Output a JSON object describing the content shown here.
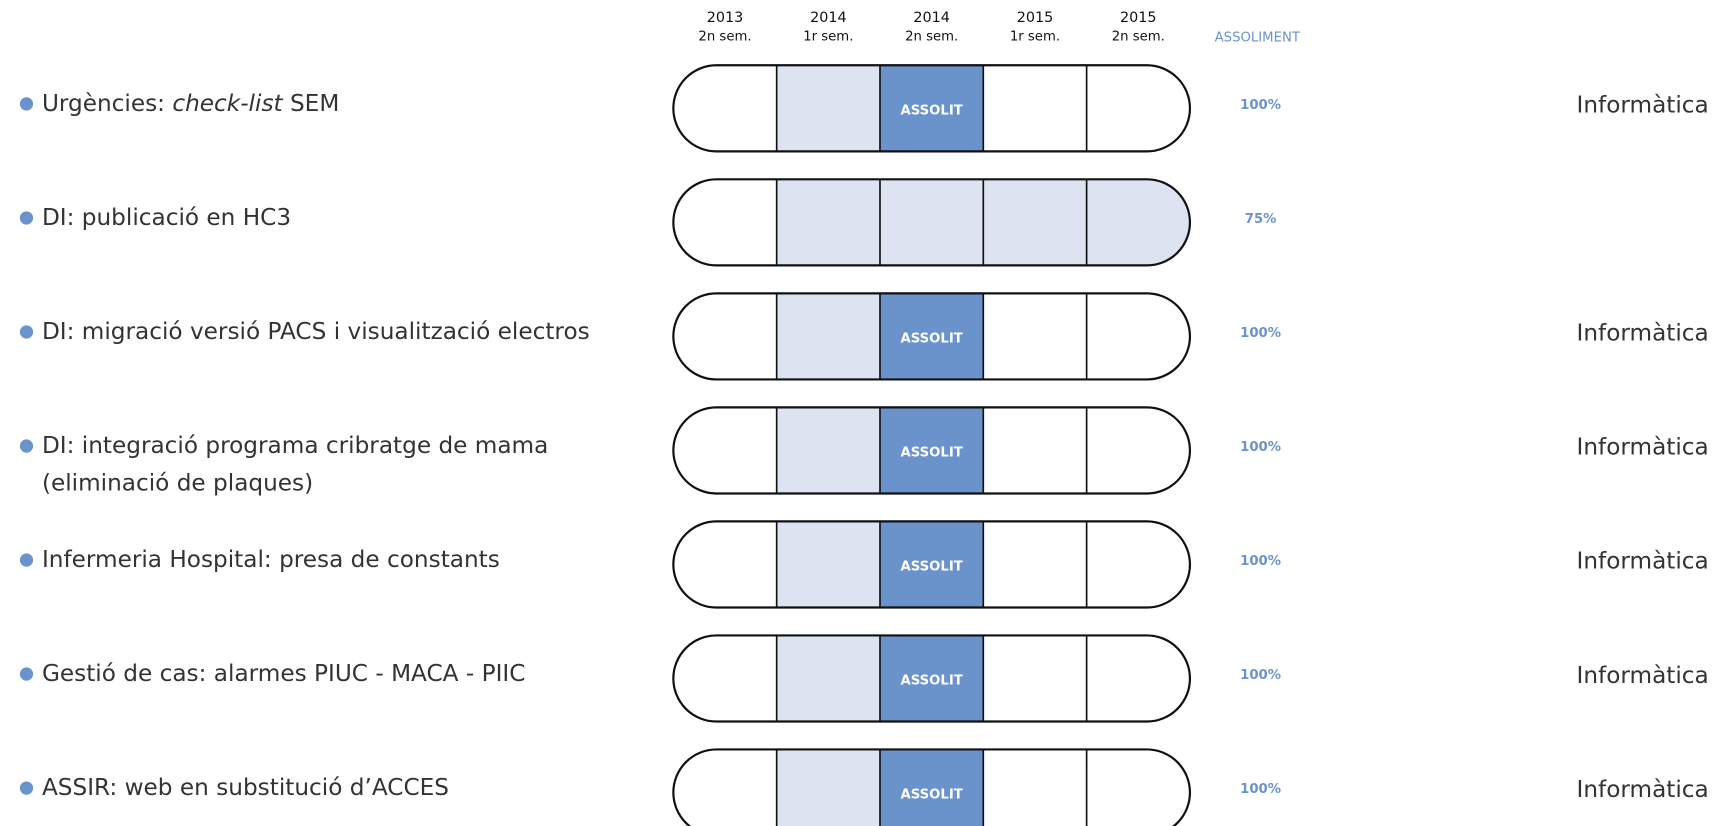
{
  "columns": [
    {
      "year": "2013",
      "period": "2n sem."
    },
    {
      "year": "2014",
      "period": "1r sem."
    },
    {
      "year": "2014",
      "period": "2n sem."
    },
    {
      "year": "2015",
      "period": "1r sem."
    },
    {
      "year": "2015",
      "period": "2n sem."
    }
  ],
  "progress_header": "ASSOLIMENT",
  "state_colors": {
    "empty": "#ffffff",
    "partial": "#dde3f1",
    "done": "#6a93cc"
  },
  "rows": [
    {
      "label": [
        [
          {
            "text": "Urgències: "
          },
          {
            "text": "check-list",
            "italic": true
          },
          {
            "text": " SEM"
          }
        ]
      ],
      "cells": [
        {
          "state": "empty"
        },
        {
          "state": "partial"
        },
        {
          "state": "done",
          "text": "ASSOLIT"
        },
        {
          "state": "empty"
        },
        {
          "state": "empty"
        }
      ],
      "progress": "100%",
      "department": "Informàtica"
    },
    {
      "label": [
        [
          {
            "text": "DI: publicació en HC3"
          }
        ]
      ],
      "cells": [
        {
          "state": "empty"
        },
        {
          "state": "partial"
        },
        {
          "state": "partial"
        },
        {
          "state": "partial"
        },
        {
          "state": "partial"
        }
      ],
      "progress": "75%"
    },
    {
      "label": [
        [
          {
            "text": "DI: migració versió PACS i visualització electros"
          }
        ]
      ],
      "cells": [
        {
          "state": "empty"
        },
        {
          "state": "partial"
        },
        {
          "state": "done",
          "text": "ASSOLIT"
        },
        {
          "state": "empty"
        },
        {
          "state": "empty"
        }
      ],
      "progress": "100%",
      "department": "Informàtica"
    },
    {
      "label": [
        [
          {
            "text": "DI: integració programa cribratge de mama"
          }
        ],
        [
          {
            "text": "(eliminació de plaques)"
          }
        ]
      ],
      "cells": [
        {
          "state": "empty"
        },
        {
          "state": "partial"
        },
        {
          "state": "done",
          "text": "ASSOLIT"
        },
        {
          "state": "empty"
        },
        {
          "state": "empty"
        }
      ],
      "progress": "100%",
      "department": "Informàtica"
    },
    {
      "label": [
        [
          {
            "text": "Infermeria Hospital: presa de constants"
          }
        ]
      ],
      "cells": [
        {
          "state": "empty"
        },
        {
          "state": "partial"
        },
        {
          "state": "done",
          "text": "ASSOLIT"
        },
        {
          "state": "empty"
        },
        {
          "state": "empty"
        }
      ],
      "progress": "100%",
      "department": "Informàtica"
    },
    {
      "label": [
        [
          {
            "text": "Gestió de cas: alarmes PIUC - MACA - PIIC"
          }
        ]
      ],
      "cells": [
        {
          "state": "empty"
        },
        {
          "state": "partial"
        },
        {
          "state": "done",
          "text": "ASSOLIT"
        },
        {
          "state": "empty"
        },
        {
          "state": "empty"
        }
      ],
      "progress": "100%",
      "department": "Informàtica"
    },
    {
      "label": [
        [
          {
            "text": "ASSIR: web en substitució d’ACCES"
          }
        ]
      ],
      "cells": [
        {
          "state": "empty"
        },
        {
          "state": "partial"
        },
        {
          "state": "done",
          "text": "ASSOLIT"
        },
        {
          "state": "empty"
        },
        {
          "state": "empty"
        }
      ],
      "progress": "100%",
      "department": "Informàtica"
    }
  ]
}
